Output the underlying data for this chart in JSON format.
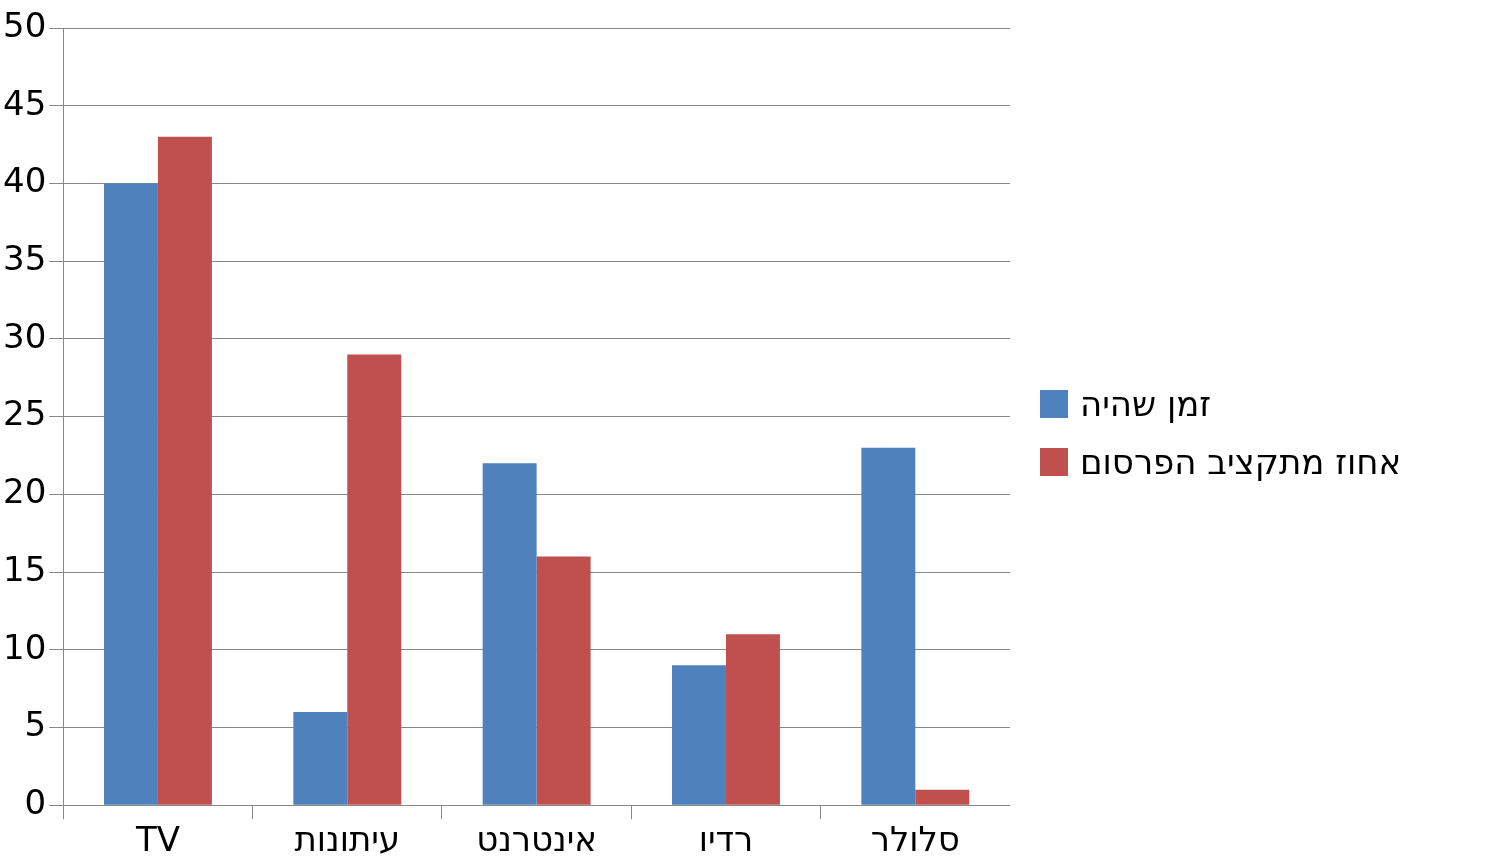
{
  "chart_data": {
    "type": "bar",
    "categories": [
      "TV",
      "עיתונות",
      "אינטרנט",
      "רדיו",
      "סלולר"
    ],
    "series": [
      {
        "name": "זמן שהיה",
        "color": "#4f81bd",
        "values": [
          40,
          6,
          22,
          9,
          23
        ]
      },
      {
        "name": "אחוז מתקציב הפרסום",
        "color": "#c0504d",
        "values": [
          43,
          29,
          16,
          11,
          1
        ]
      }
    ],
    "ylim": [
      0,
      50
    ],
    "yticks": [
      0,
      5,
      10,
      15,
      20,
      25,
      30,
      35,
      40,
      45,
      50
    ],
    "grid": "y",
    "legend": "right"
  }
}
